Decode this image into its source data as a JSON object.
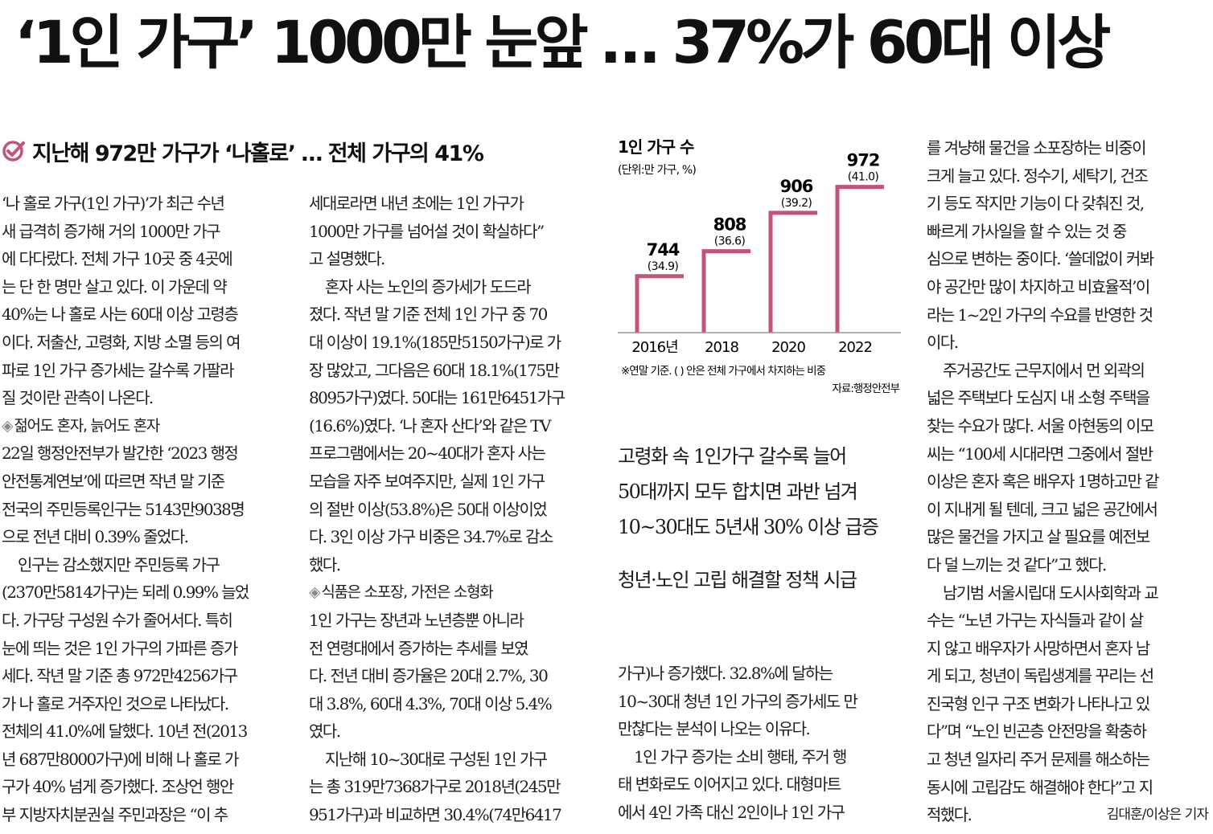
{
  "headline": "‘1인 가구’ 1000만 눈앞 … 37%가 60대 이상",
  "subhead": "지난해 972만 가구가 ‘나홀로’ … 전체 가구의 41%",
  "col1": [
    "‘나 홀로 가구(1인 가구)’가 최근 수년",
    "새 급격히 증가해 거의 1000만 가구",
    "에 다다랐다. 전체 가구 10곳 중 4곳에",
    "는 단 한 명만 살고 있다. 이 가운데 약",
    "40%는 나 홀로 사는 60대 이상 고령층",
    "이다. 저출산, 고령화, 지방 소멸 등의 여",
    "파로 1인 가구 증가세는 갈수록 가팔라",
    "질 것이란 관측이 나온다.",
    "젊어도 혼자, 늙어도 혼자",
    "22일 행정안전부가 발간한 ‘2023 행정",
    "안전통계연보’에 따르면 작년 말 기준",
    "전국의 주민등록인구는 5143만9038명",
    "으로 전년 대비 0.39% 줄었다.",
    "인구는 감소했지만 주민등록 가구",
    "(2370만5814가구)는 되레 0.99% 늘었",
    "다. 가구당 구성원 수가 줄어서다. 특히",
    "눈에 띄는 것은 1인 가구의 가파른 증가",
    "세다. 작년 말 기준 총 972만4256가구",
    "가 나 홀로 거주자인 것으로 나타났다.",
    "전체의 41.0%에 달했다. 10년 전(2013",
    "년 687만8000가구)에 비해 나 홀로 가",
    "구가 40% 넘게 증가했다. 조상언 행안",
    "부 지방자치분권실 주민과장은 “이 추"
  ],
  "col2": [
    "세대로라면 내년 초에는 1인 가구가",
    "1000만 가구를 넘어설 것이 확실하다”",
    "고 설명했다.",
    "혼자 사는 노인의 증가세가 도드라",
    "졌다. 작년 말 기준 전체 1인 가구 중 70",
    "대 이상이 19.1%(185만5150가구)로 가",
    "장 많았고, 그다음은 60대 18.1%(175만",
    "8095가구)였다. 50대는 161만6451가구",
    "(16.6%)였다. ‘나 혼자 산다’와 같은 TV",
    "프로그램에서는 20~40대가 혼자 사는",
    "모습을 자주 보여주지만, 실제 1인 가구",
    "의 절반 이상(53.8%)은 50대 이상이었",
    "다. 3인 이상 가구 비중은 34.7%로 감소",
    "했다.",
    "식품은 소포장, 가전은 소형화",
    "1인 가구는 장년과 노년층뿐 아니라",
    "전 연령대에서 증가하는 추세를 보였",
    "다. 전년 대비 증가율은 20대 2.7%, 30",
    "대 3.8%, 60대 4.3%, 70대 이상 5.4%",
    "였다.",
    "지난해 10~30대로 구성된 1인 가구",
    "는 총 319만7368가구로 2018년(245만",
    "951가구)과 비교하면 30.4%(74만6417"
  ],
  "col3_bottom": [
    "가구)나 증가했다. 32.8%에 달하는",
    "10~30대 청년 1인 가구의 증가세도 만",
    "만찮다는 분석이 나오는 이유다.",
    "1인 가구 증가는 소비 행태, 주거 행",
    "태 변화로도 이어지고 있다. 대형마트",
    "에서 4인 가족 대신 2인이나 1인 가구"
  ],
  "col4": [
    "를 겨냥해 물건을 소포장하는 비중이",
    "크게 늘고 있다. 정수기, 세탁기, 건조",
    "기 등도 작지만 기능이 다 갖춰진 것,",
    "빠르게 가사일을 할 수 있는 것 중",
    "심으로 변하는 중이다. ‘쓸데없이 커봐",
    "야 공간만 많이 차지하고 비효율적’이",
    "라는 1~2인 가구의 수요를 반영한 것",
    "이다.",
    "주거공간도 근무지에서 먼 외곽의",
    "넓은 주택보다 도심지 내 소형 주택을",
    "찾는 수요가 많다. 서울 아현동의 이모",
    "씨는 “100세 시대라면 그중에서 절반",
    "이상은 혼자 혹은 배우자 1명하고만 같",
    "이 지내게 될 텐데, 크고 넓은 공간에서",
    "많은 물건을 가지고 살 필요를 예전보",
    "다 덜 느끼는 것 같다”고 했다.",
    "남기범 서울시립대 도시사회학과 교",
    "수는 “노년 가구는 자식들과 같이 살",
    "지 않고 배우자가 사망하면서 혼자 남",
    "게 되고, 청년이 독립생계를 꾸리는 선",
    "진국형 인구 구조 변화가 나타나고 있",
    "다”며 “노인 빈곤층 안전망을 확충하",
    "고 청년 일자리 주거 문제를 해소하는",
    "동시에 고립감도 해결해야 한다”고 지",
    "적했다."
  ],
  "byline": "김대훈/이상은 기자",
  "pullquotes": [
    "고령화 속 1인가구 갈수록 늘어",
    "50대까지 모두 합치면 과반 넘겨",
    "10~30대도 5년새 30% 이상 급증",
    "청년·노인 고립 해결할 정책 시급"
  ],
  "colors": {
    "accent": "#c4537a",
    "text": "#1c1c1c"
  },
  "chart_data": {
    "type": "bar",
    "title": "1인 가구 수",
    "unit": "(단위:만 가구, %)",
    "categories": [
      "2016년",
      "2018",
      "2020",
      "2022"
    ],
    "values": [
      744,
      808,
      906,
      972
    ],
    "shares": [
      "(34.9)",
      "(36.6)",
      "(39.2)",
      "(41.0)"
    ],
    "note": "※연말 기준. ( ) 안은 전체 가구에서 차지하는 비중",
    "source": "자료:행정안전부",
    "style": "step outline bars, pink"
  }
}
